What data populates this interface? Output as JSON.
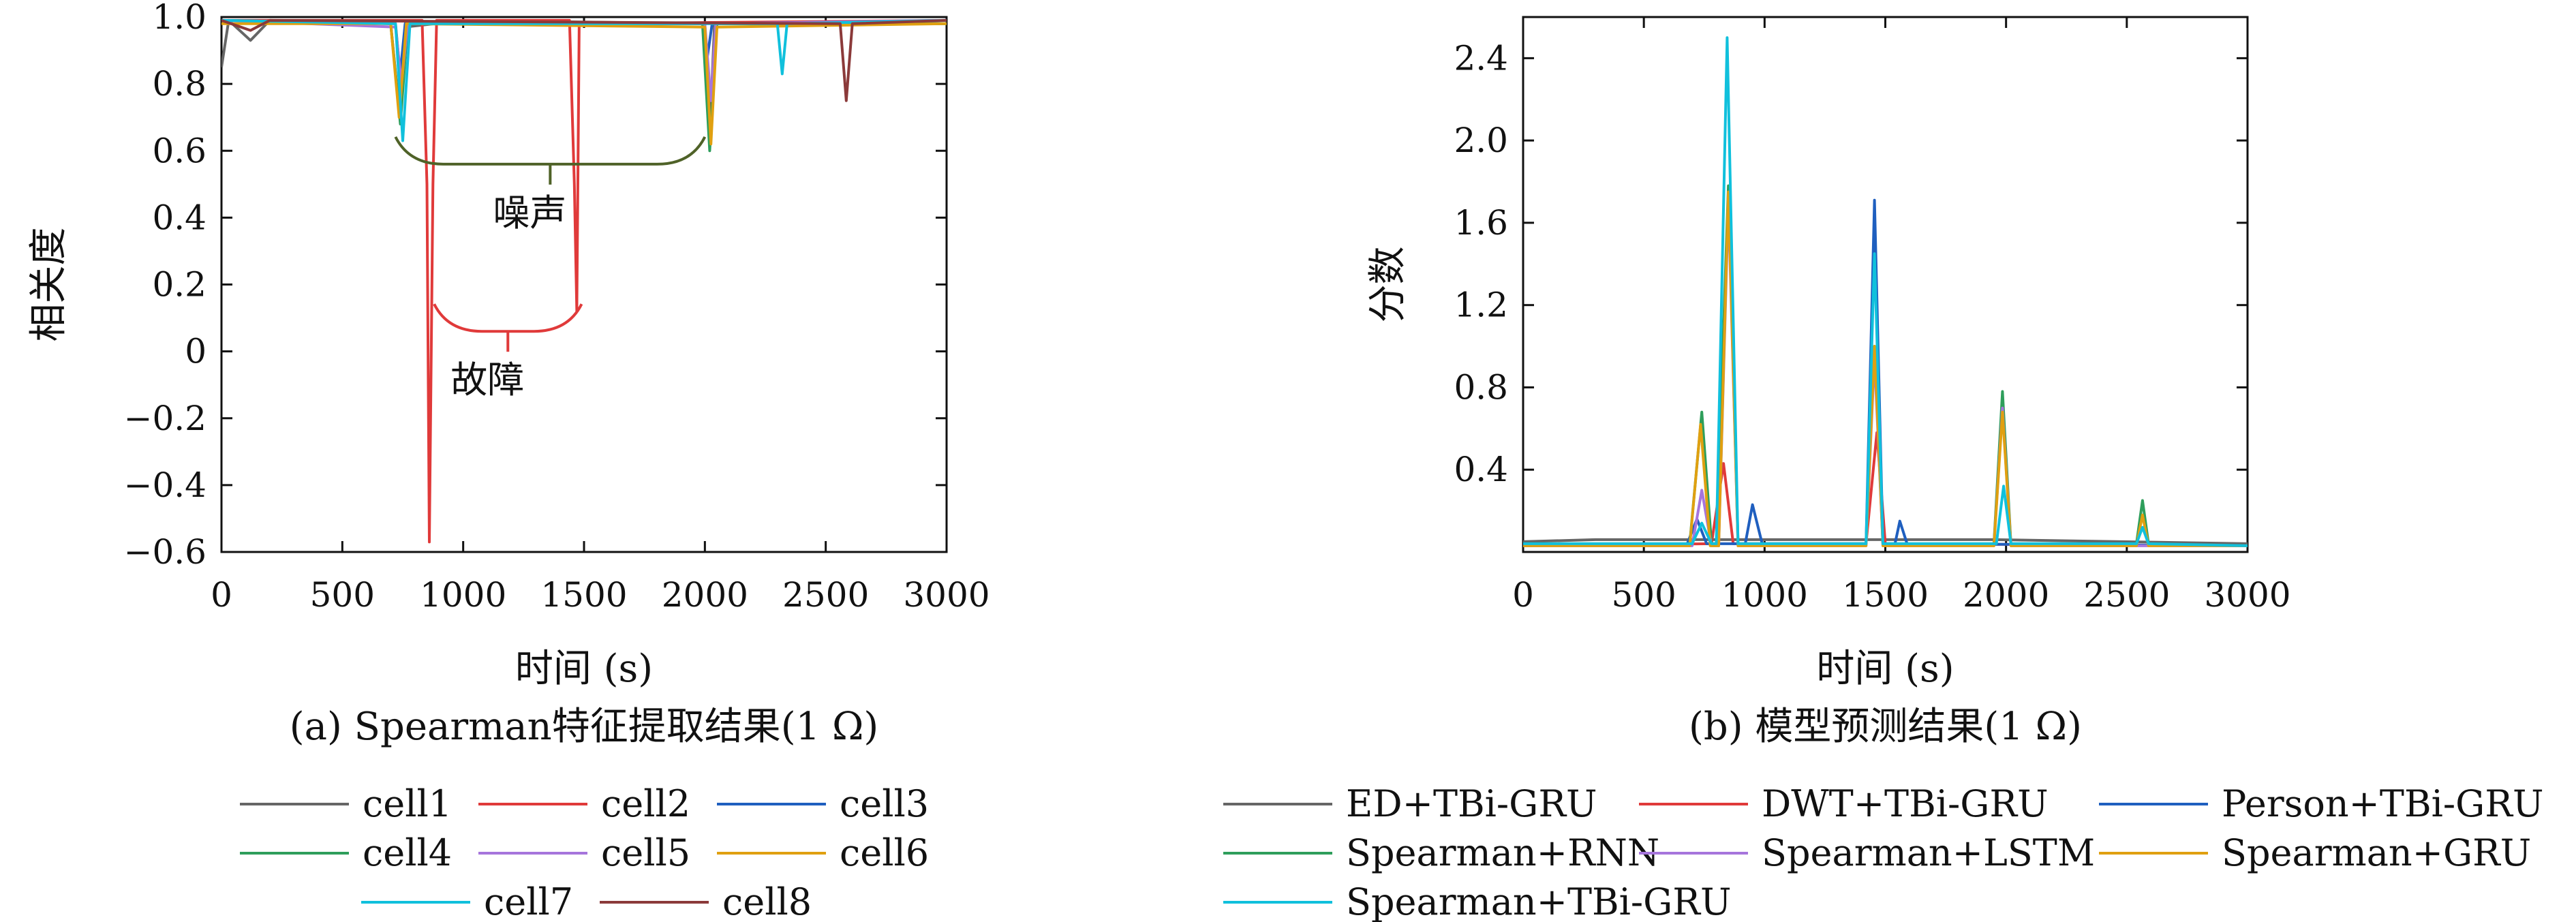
{
  "chart_data": [
    {
      "id": "a",
      "type": "line",
      "caption": "(a) Spearman特征提取结果(1 Ω)",
      "xlabel": "时间 (s)",
      "ylabel": "相关度",
      "xlim": [
        0,
        3000
      ],
      "ylim": [
        -0.6,
        1.0
      ],
      "x_ticks": [
        "0",
        "500",
        "1000",
        "1500",
        "2000",
        "2500",
        "3000"
      ],
      "y_ticks": [
        "1.0",
        "0.8",
        "0.6",
        "0.4",
        "0.2",
        "0",
        "−0.2",
        "−0.4",
        "−0.6"
      ],
      "grid": false,
      "legend_position": "bottom",
      "annotations": [
        {
          "text": "噪声",
          "color": "#4f6228",
          "x_range": [
            720,
            2000
          ],
          "y": 0.56
        },
        {
          "text": "故障",
          "color": "#e03a3a",
          "x_range": [
            880,
            1490
          ],
          "y": 0.06
        }
      ],
      "series": [
        {
          "name": "cell1",
          "color": "#666666",
          "points": [
            [
              0,
              0.85
            ],
            [
              30,
              0.99
            ],
            [
              120,
              0.93
            ],
            [
              200,
              0.99
            ],
            [
              720,
              0.98
            ],
            [
              740,
              0.82
            ],
            [
              760,
              0.97
            ],
            [
              1000,
              0.99
            ],
            [
              2000,
              0.98
            ],
            [
              2020,
              0.65
            ],
            [
              2040,
              0.98
            ],
            [
              3000,
              0.98
            ]
          ]
        },
        {
          "name": "cell2",
          "color": "#e03a3a",
          "points": [
            [
              0,
              0.99
            ],
            [
              780,
              0.99
            ],
            [
              830,
              0.99
            ],
            [
              850,
              0.5
            ],
            [
              860,
              -0.57
            ],
            [
              875,
              0.5
            ],
            [
              890,
              0.99
            ],
            [
              1440,
              0.99
            ],
            [
              1460,
              0.5
            ],
            [
              1470,
              0.12
            ],
            [
              1480,
              0.98
            ],
            [
              3000,
              0.99
            ]
          ]
        },
        {
          "name": "cell3",
          "color": "#1f5fbf",
          "points": [
            [
              0,
              0.99
            ],
            [
              700,
              0.98
            ],
            [
              730,
              0.76
            ],
            [
              760,
              0.98
            ],
            [
              1990,
              0.98
            ],
            [
              2010,
              0.88
            ],
            [
              2030,
              0.98
            ],
            [
              3000,
              0.99
            ]
          ]
        },
        {
          "name": "cell4",
          "color": "#2e9e5b",
          "points": [
            [
              0,
              0.99
            ],
            [
              700,
              0.98
            ],
            [
              740,
              0.68
            ],
            [
              770,
              0.98
            ],
            [
              1990,
              0.98
            ],
            [
              2020,
              0.6
            ],
            [
              2050,
              0.98
            ],
            [
              3000,
              0.98
            ]
          ]
        },
        {
          "name": "cell5",
          "color": "#a675dc",
          "points": [
            [
              0,
              0.99
            ],
            [
              720,
              0.97
            ],
            [
              745,
              0.8
            ],
            [
              770,
              0.98
            ],
            [
              2000,
              0.98
            ],
            [
              2025,
              0.75
            ],
            [
              2045,
              0.98
            ],
            [
              3000,
              0.99
            ]
          ]
        },
        {
          "name": "cell6",
          "color": "#e0a010",
          "points": [
            [
              0,
              0.98
            ],
            [
              700,
              0.98
            ],
            [
              735,
              0.7
            ],
            [
              765,
              0.98
            ],
            [
              2000,
              0.97
            ],
            [
              2025,
              0.62
            ],
            [
              2050,
              0.97
            ],
            [
              3000,
              0.98
            ]
          ]
        },
        {
          "name": "cell7",
          "color": "#10c0dc",
          "points": [
            [
              0,
              0.99
            ],
            [
              720,
              0.98
            ],
            [
              750,
              0.63
            ],
            [
              780,
              0.98
            ],
            [
              2300,
              0.98
            ],
            [
              2320,
              0.83
            ],
            [
              2340,
              0.98
            ],
            [
              3000,
              0.99
            ]
          ]
        },
        {
          "name": "cell8",
          "color": "#8b3a3a",
          "points": [
            [
              0,
              0.99
            ],
            [
              120,
              0.96
            ],
            [
              200,
              0.99
            ],
            [
              2560,
              0.98
            ],
            [
              2585,
              0.75
            ],
            [
              2610,
              0.98
            ],
            [
              3000,
              0.99
            ]
          ]
        }
      ]
    },
    {
      "id": "b",
      "type": "line",
      "caption": "(b) 模型预测结果(1 Ω)",
      "xlabel": "时间 (s)",
      "ylabel": "分数",
      "xlim": [
        0,
        3000
      ],
      "ylim": [
        0,
        2.6
      ],
      "x_ticks": [
        "0",
        "500",
        "1000",
        "1500",
        "2000",
        "2500",
        "3000"
      ],
      "y_ticks": [
        "2.4",
        "2.0",
        "1.6",
        "1.2",
        "0.8",
        "0.4"
      ],
      "grid": false,
      "legend_position": "bottom",
      "series": [
        {
          "name": "ED+TBi-GRU",
          "color": "#666666",
          "points": [
            [
              0,
              0.05
            ],
            [
              300,
              0.06
            ],
            [
              700,
              0.06
            ],
            [
              760,
              0.06
            ],
            [
              800,
              0.06
            ],
            [
              1440,
              0.06
            ],
            [
              1500,
              0.06
            ],
            [
              1950,
              0.06
            ],
            [
              3000,
              0.04
            ]
          ]
        },
        {
          "name": "DWT+TBi-GRU",
          "color": "#e03a3a",
          "points": [
            [
              0,
              0.03
            ],
            [
              780,
              0.04
            ],
            [
              830,
              0.43
            ],
            [
              870,
              0.04
            ],
            [
              1420,
              0.04
            ],
            [
              1465,
              0.58
            ],
            [
              1500,
              0.04
            ],
            [
              3000,
              0.03
            ]
          ]
        },
        {
          "name": "Person+TBi-GRU",
          "color": "#1f5fbf",
          "points": [
            [
              0,
              0.03
            ],
            [
              680,
              0.04
            ],
            [
              720,
              0.16
            ],
            [
              760,
              0.04
            ],
            [
              920,
              0.04
            ],
            [
              950,
              0.23
            ],
            [
              990,
              0.04
            ],
            [
              1420,
              0.04
            ],
            [
              1455,
              1.71
            ],
            [
              1490,
              0.04
            ],
            [
              1540,
              0.04
            ],
            [
              1560,
              0.15
            ],
            [
              1590,
              0.04
            ],
            [
              3000,
              0.03
            ]
          ]
        },
        {
          "name": "Spearman+RNN",
          "color": "#2e9e5b",
          "points": [
            [
              0,
              0.04
            ],
            [
              690,
              0.04
            ],
            [
              740,
              0.68
            ],
            [
              780,
              0.04
            ],
            [
              800,
              0.04
            ],
            [
              850,
              1.78
            ],
            [
              890,
              0.04
            ],
            [
              1420,
              0.04
            ],
            [
              1455,
              1.0
            ],
            [
              1490,
              0.04
            ],
            [
              1950,
              0.04
            ],
            [
              1985,
              0.78
            ],
            [
              2020,
              0.04
            ],
            [
              2540,
              0.04
            ],
            [
              2565,
              0.25
            ],
            [
              2590,
              0.04
            ],
            [
              3000,
              0.03
            ]
          ]
        },
        {
          "name": "Spearman+LSTM",
          "color": "#a675dc",
          "points": [
            [
              0,
              0.03
            ],
            [
              700,
              0.03
            ],
            [
              740,
              0.3
            ],
            [
              780,
              0.03
            ],
            [
              810,
              0.03
            ],
            [
              850,
              1.7
            ],
            [
              890,
              0.03
            ],
            [
              1420,
              0.03
            ],
            [
              1455,
              0.95
            ],
            [
              1490,
              0.03
            ],
            [
              1950,
              0.03
            ],
            [
              1985,
              0.7
            ],
            [
              2020,
              0.03
            ],
            [
              3000,
              0.03
            ]
          ]
        },
        {
          "name": "Spearman+GRU",
          "color": "#e0a010",
          "points": [
            [
              0,
              0.03
            ],
            [
              690,
              0.03
            ],
            [
              735,
              0.62
            ],
            [
              775,
              0.03
            ],
            [
              810,
              0.03
            ],
            [
              850,
              1.75
            ],
            [
              890,
              0.03
            ],
            [
              1420,
              0.03
            ],
            [
              1455,
              1.0
            ],
            [
              1490,
              0.03
            ],
            [
              1950,
              0.03
            ],
            [
              1985,
              0.68
            ],
            [
              2020,
              0.03
            ],
            [
              2540,
              0.03
            ],
            [
              2565,
              0.18
            ],
            [
              2590,
              0.03
            ],
            [
              3000,
              0.03
            ]
          ]
        },
        {
          "name": "Spearman+TBi-GRU",
          "color": "#10c0dc",
          "points": [
            [
              0,
              0.04
            ],
            [
              700,
              0.04
            ],
            [
              740,
              0.14
            ],
            [
              780,
              0.04
            ],
            [
              800,
              0.04
            ],
            [
              845,
              2.5
            ],
            [
              890,
              0.04
            ],
            [
              1420,
              0.04
            ],
            [
              1455,
              1.45
            ],
            [
              1490,
              0.04
            ],
            [
              1960,
              0.04
            ],
            [
              1990,
              0.32
            ],
            [
              2020,
              0.04
            ],
            [
              2540,
              0.04
            ],
            [
              2565,
              0.12
            ],
            [
              2590,
              0.04
            ],
            [
              3000,
              0.03
            ]
          ]
        }
      ]
    }
  ]
}
